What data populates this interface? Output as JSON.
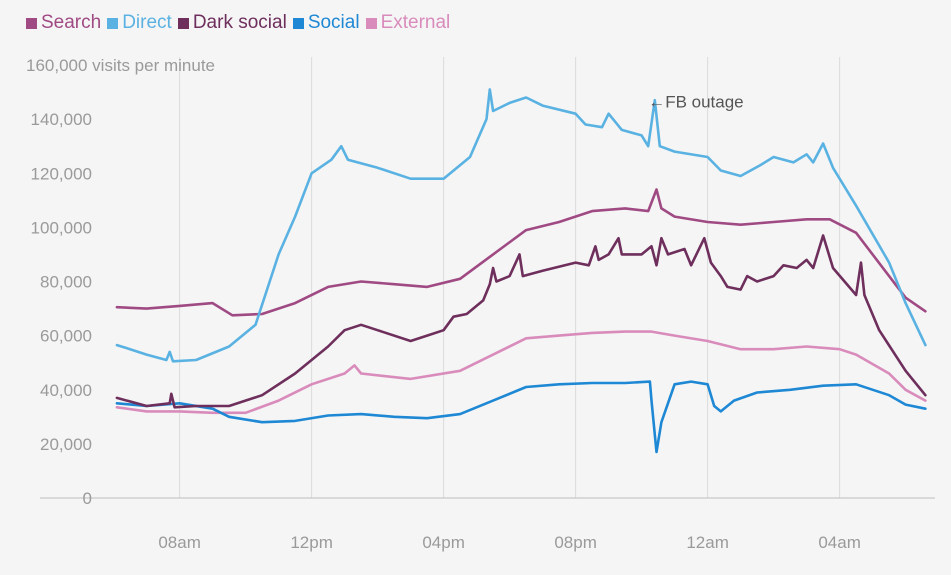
{
  "chart_data": {
    "type": "line",
    "title": "",
    "ylabel": "visits per minute",
    "xlabel": "",
    "ylim": [
      0,
      160000
    ],
    "y_ticks": [
      0,
      20000,
      40000,
      60000,
      80000,
      100000,
      120000,
      140000,
      160000
    ],
    "y_tick_labels": [
      "0",
      "20,000",
      "40,000",
      "60,000",
      "80,000",
      "100,000",
      "120,000",
      "140,000",
      "160,000"
    ],
    "top_tick_label": "160,000 visits per minute",
    "x_range_hours": [
      6,
      30.8
    ],
    "x_ticks": [
      8,
      12,
      16,
      20,
      24,
      28
    ],
    "x_tick_labels": [
      "08am",
      "12pm",
      "04pm",
      "08pm",
      "12am",
      "04am"
    ],
    "grid": "vertical",
    "legend_position": "top-left",
    "annotation": {
      "text": "←FB outage",
      "x": 22.2,
      "y": 145000
    },
    "series": [
      {
        "name": "Search",
        "color": "#a04a84",
        "points": [
          [
            6.1,
            70500
          ],
          [
            7,
            70000
          ],
          [
            8,
            71000
          ],
          [
            9,
            72000
          ],
          [
            9.6,
            67500
          ],
          [
            10.5,
            68000
          ],
          [
            11.5,
            72000
          ],
          [
            12.5,
            78000
          ],
          [
            13.5,
            80000
          ],
          [
            14.5,
            79000
          ],
          [
            15.5,
            78000
          ],
          [
            16.5,
            81000
          ],
          [
            17.5,
            90000
          ],
          [
            18.5,
            99000
          ],
          [
            19.5,
            102000
          ],
          [
            20.5,
            106000
          ],
          [
            21.5,
            107000
          ],
          [
            22.2,
            106000
          ],
          [
            22.45,
            114000
          ],
          [
            22.6,
            107000
          ],
          [
            23,
            104000
          ],
          [
            24,
            102000
          ],
          [
            25,
            101000
          ],
          [
            26,
            102000
          ],
          [
            27,
            103000
          ],
          [
            27.7,
            103000
          ],
          [
            28.5,
            98000
          ],
          [
            29.5,
            82000
          ],
          [
            30,
            74000
          ],
          [
            30.6,
            69000
          ]
        ]
      },
      {
        "name": "Direct",
        "color": "#5ab2e2",
        "points": [
          [
            6.1,
            56500
          ],
          [
            6.5,
            55000
          ],
          [
            7,
            53000
          ],
          [
            7.6,
            51000
          ],
          [
            7.7,
            54000
          ],
          [
            7.8,
            50500
          ],
          [
            8.5,
            51000
          ],
          [
            9.5,
            56000
          ],
          [
            10.3,
            64000
          ],
          [
            11,
            90000
          ],
          [
            11.5,
            104000
          ],
          [
            12,
            120000
          ],
          [
            12.6,
            125000
          ],
          [
            12.9,
            130000
          ],
          [
            13.1,
            125000
          ],
          [
            14,
            122000
          ],
          [
            15,
            118000
          ],
          [
            16,
            118000
          ],
          [
            16.8,
            126000
          ],
          [
            17.3,
            140000
          ],
          [
            17.4,
            151000
          ],
          [
            17.5,
            143000
          ],
          [
            18,
            146000
          ],
          [
            18.5,
            148000
          ],
          [
            19,
            145000
          ],
          [
            20,
            142000
          ],
          [
            20.3,
            138000
          ],
          [
            20.8,
            137000
          ],
          [
            21,
            142000
          ],
          [
            21.4,
            136000
          ],
          [
            22,
            134000
          ],
          [
            22.2,
            130000
          ],
          [
            22.4,
            147000
          ],
          [
            22.55,
            130000
          ],
          [
            23,
            128000
          ],
          [
            24,
            126000
          ],
          [
            24.4,
            121000
          ],
          [
            25,
            119000
          ],
          [
            25.6,
            123000
          ],
          [
            26,
            126000
          ],
          [
            26.6,
            124000
          ],
          [
            27,
            127000
          ],
          [
            27.2,
            124000
          ],
          [
            27.5,
            131000
          ],
          [
            27.8,
            122000
          ],
          [
            28.5,
            108000
          ],
          [
            29.5,
            87000
          ],
          [
            30,
            72000
          ],
          [
            30.6,
            56500
          ]
        ]
      },
      {
        "name": "Dark social",
        "color": "#6e2f5c",
        "points": [
          [
            6.1,
            37000
          ],
          [
            7,
            34000
          ],
          [
            7.7,
            35000
          ],
          [
            7.75,
            38500
          ],
          [
            7.85,
            33500
          ],
          [
            8.5,
            34000
          ],
          [
            9.5,
            34000
          ],
          [
            10.5,
            38000
          ],
          [
            11.5,
            46000
          ],
          [
            12.5,
            56000
          ],
          [
            13,
            62000
          ],
          [
            13.5,
            64000
          ],
          [
            14,
            62000
          ],
          [
            15,
            58000
          ],
          [
            15.5,
            60000
          ],
          [
            16,
            62000
          ],
          [
            16.3,
            67000
          ],
          [
            16.7,
            68000
          ],
          [
            17.2,
            73000
          ],
          [
            17.4,
            79000
          ],
          [
            17.5,
            85000
          ],
          [
            17.6,
            80000
          ],
          [
            18,
            82000
          ],
          [
            18.3,
            90000
          ],
          [
            18.4,
            82000
          ],
          [
            19,
            84000
          ],
          [
            20,
            87000
          ],
          [
            20.4,
            86000
          ],
          [
            20.6,
            93000
          ],
          [
            20.7,
            88000
          ],
          [
            21,
            90000
          ],
          [
            21.3,
            96000
          ],
          [
            21.4,
            90000
          ],
          [
            22,
            90000
          ],
          [
            22.3,
            93000
          ],
          [
            22.45,
            86000
          ],
          [
            22.6,
            96000
          ],
          [
            22.8,
            90000
          ],
          [
            23.3,
            92000
          ],
          [
            23.5,
            86000
          ],
          [
            23.9,
            96000
          ],
          [
            24.1,
            87000
          ],
          [
            24.4,
            82000
          ],
          [
            24.6,
            78000
          ],
          [
            25,
            77000
          ],
          [
            25.2,
            82000
          ],
          [
            25.5,
            80000
          ],
          [
            26,
            82000
          ],
          [
            26.3,
            86000
          ],
          [
            26.7,
            85000
          ],
          [
            27,
            88000
          ],
          [
            27.2,
            85000
          ],
          [
            27.5,
            97000
          ],
          [
            27.8,
            85000
          ],
          [
            28.5,
            75000
          ],
          [
            28.65,
            87000
          ],
          [
            28.75,
            75000
          ],
          [
            29.2,
            62000
          ],
          [
            30,
            47000
          ],
          [
            30.6,
            38000
          ]
        ]
      },
      {
        "name": "Social",
        "color": "#1e88d4",
        "points": [
          [
            6.1,
            35000
          ],
          [
            7,
            34000
          ],
          [
            8,
            35000
          ],
          [
            9,
            33000
          ],
          [
            9.5,
            30000
          ],
          [
            10.5,
            28000
          ],
          [
            11.5,
            28500
          ],
          [
            12.5,
            30500
          ],
          [
            13.5,
            31000
          ],
          [
            14.5,
            30000
          ],
          [
            15.5,
            29500
          ],
          [
            16.5,
            31000
          ],
          [
            17.5,
            36000
          ],
          [
            18.5,
            41000
          ],
          [
            19.5,
            42000
          ],
          [
            20.5,
            42500
          ],
          [
            21.5,
            42500
          ],
          [
            22.25,
            43000
          ],
          [
            22.3,
            36000
          ],
          [
            22.45,
            17000
          ],
          [
            22.6,
            28000
          ],
          [
            23,
            42000
          ],
          [
            23.5,
            43000
          ],
          [
            24,
            42000
          ],
          [
            24.2,
            34000
          ],
          [
            24.4,
            32000
          ],
          [
            24.8,
            36000
          ],
          [
            25.5,
            39000
          ],
          [
            26.5,
            40000
          ],
          [
            27.5,
            41500
          ],
          [
            28.5,
            42000
          ],
          [
            29.5,
            38000
          ],
          [
            30,
            34500
          ],
          [
            30.6,
            33000
          ]
        ]
      },
      {
        "name": "External",
        "color": "#d98cbb",
        "points": [
          [
            6.1,
            33500
          ],
          [
            7,
            32000
          ],
          [
            8,
            32000
          ],
          [
            9,
            31500
          ],
          [
            10,
            31500
          ],
          [
            11,
            36000
          ],
          [
            12,
            42000
          ],
          [
            13,
            46000
          ],
          [
            13.3,
            49000
          ],
          [
            13.5,
            46000
          ],
          [
            15,
            44000
          ],
          [
            16.5,
            47000
          ],
          [
            17.5,
            53000
          ],
          [
            18.5,
            59000
          ],
          [
            19.5,
            60000
          ],
          [
            20.5,
            61000
          ],
          [
            21.5,
            61500
          ],
          [
            22.3,
            61500
          ],
          [
            23,
            60000
          ],
          [
            24,
            58000
          ],
          [
            25,
            55000
          ],
          [
            26,
            55000
          ],
          [
            27,
            56000
          ],
          [
            28,
            55000
          ],
          [
            28.5,
            53000
          ],
          [
            29.5,
            46000
          ],
          [
            30,
            40000
          ],
          [
            30.6,
            36000
          ]
        ]
      }
    ]
  }
}
